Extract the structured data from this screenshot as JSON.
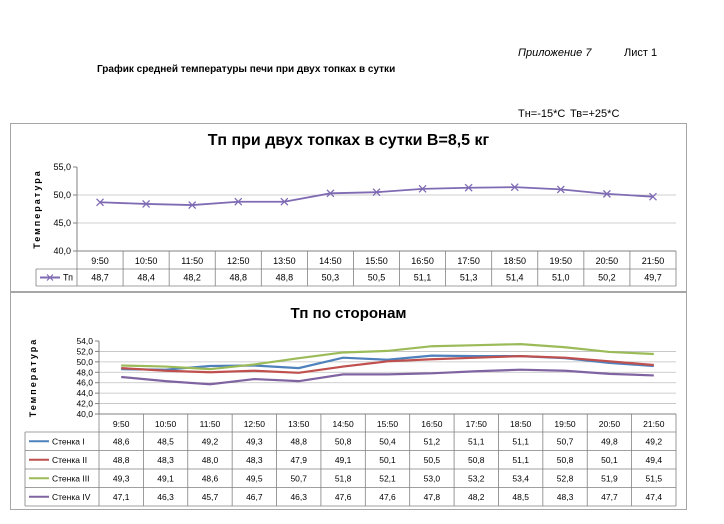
{
  "header": {
    "appendix": "Приложение 7",
    "sheet": "Лист 1",
    "doc_title": "График средней температуры печи при двух топках в сутки",
    "conditions_tn": "Тн=-15*С",
    "conditions_tv": "Тв=+25*С"
  },
  "chart_data": [
    {
      "type": "line",
      "title": "Тп при двух топках в сутки В=8,5 кг",
      "ylabel": "Температура",
      "ylim": [
        40,
        55
      ],
      "yticks": [
        "40,0",
        "45,0",
        "50,0",
        "55,0"
      ],
      "categories": [
        "9:50",
        "10:50",
        "11:50",
        "12:50",
        "13:50",
        "14:50",
        "15:50",
        "16:50",
        "17:50",
        "18:50",
        "19:50",
        "20:50",
        "21:50"
      ],
      "series": [
        {
          "name": "Тп",
          "color": "#7f6bb3",
          "values": [
            48.7,
            48.4,
            48.2,
            48.8,
            48.8,
            50.3,
            50.5,
            51.1,
            51.3,
            51.4,
            51.0,
            50.2,
            49.7
          ],
          "labels": [
            "48,7",
            "48,4",
            "48,2",
            "48,8",
            "48,8",
            "50,3",
            "50,5",
            "51,1",
            "51,3",
            "51,4",
            "51,0",
            "50,2",
            "49,7"
          ]
        }
      ]
    },
    {
      "type": "line",
      "title": "Тп по сторонам",
      "ylabel": "Температура",
      "ylim": [
        40,
        54
      ],
      "yticks": [
        "40,0",
        "42,0",
        "44,0",
        "46,0",
        "48,0",
        "50,0",
        "52,0",
        "54,0"
      ],
      "categories": [
        "9:50",
        "10:50",
        "11:50",
        "12:50",
        "13:50",
        "14:50",
        "15:50",
        "16:50",
        "17:50",
        "18:50",
        "19:50",
        "20:50",
        "21:50"
      ],
      "series": [
        {
          "name": "Стенка I",
          "color": "#4f81bd",
          "values": [
            48.6,
            48.5,
            49.2,
            49.3,
            48.8,
            50.8,
            50.4,
            51.2,
            51.1,
            51.1,
            50.7,
            49.8,
            49.2
          ],
          "labels": [
            "48,6",
            "48,5",
            "49,2",
            "49,3",
            "48,8",
            "50,8",
            "50,4",
            "51,2",
            "51,1",
            "51,1",
            "50,7",
            "49,8",
            "49,2"
          ]
        },
        {
          "name": "Стенка II",
          "color": "#c0504d",
          "values": [
            48.8,
            48.3,
            48.0,
            48.3,
            47.9,
            49.1,
            50.1,
            50.5,
            50.8,
            51.1,
            50.8,
            50.1,
            49.4
          ],
          "labels": [
            "48,8",
            "48,3",
            "48,0",
            "48,3",
            "47,9",
            "49,1",
            "50,1",
            "50,5",
            "50,8",
            "51,1",
            "50,8",
            "50,1",
            "49,4"
          ]
        },
        {
          "name": "Стенка III",
          "color": "#9bbb59",
          "values": [
            49.3,
            49.1,
            48.6,
            49.5,
            50.7,
            51.8,
            52.1,
            53.0,
            53.2,
            53.4,
            52.8,
            51.9,
            51.5
          ],
          "labels": [
            "49,3",
            "49,1",
            "48,6",
            "49,5",
            "50,7",
            "51,8",
            "52,1",
            "53,0",
            "53,2",
            "53,4",
            "52,8",
            "51,9",
            "51,5"
          ]
        },
        {
          "name": "Стенка IV",
          "color": "#8064a2",
          "values": [
            47.1,
            46.3,
            45.7,
            46.7,
            46.3,
            47.6,
            47.6,
            47.8,
            48.2,
            48.5,
            48.3,
            47.7,
            47.4
          ],
          "labels": [
            "47,1",
            "46,3",
            "45,7",
            "46,7",
            "46,3",
            "47,6",
            "47,6",
            "47,8",
            "48,2",
            "48,5",
            "48,3",
            "47,7",
            "47,4"
          ]
        }
      ]
    }
  ]
}
